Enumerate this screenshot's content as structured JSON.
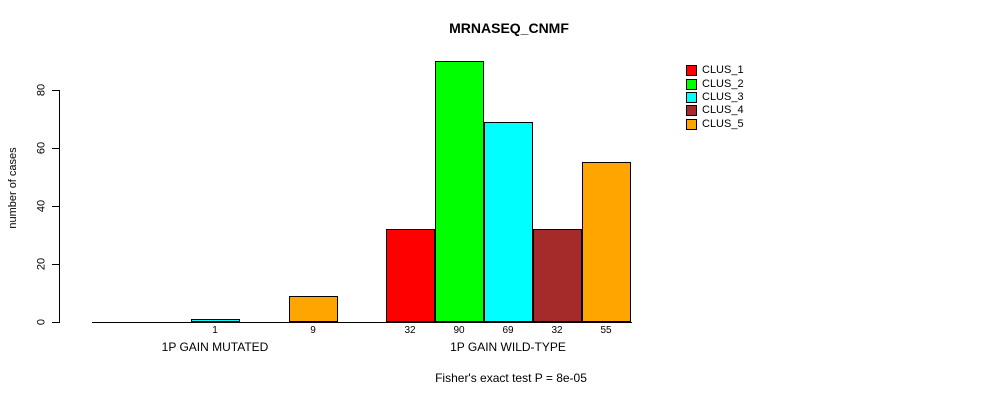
{
  "chart_data": {
    "type": "bar",
    "title": "MRNASEQ_CNMF",
    "ylabel": "number of cases",
    "xlabel": "",
    "subtitle": "Fisher's exact test P = 8e-05",
    "groups": [
      "1P GAIN MUTATED",
      "1P GAIN WILD-TYPE"
    ],
    "yticks": [
      0,
      20,
      40,
      60,
      80
    ],
    "ylim": [
      0,
      93
    ],
    "grid": false,
    "legend_position": "top-right",
    "bar_value_labels": "shown under each non-zero bar",
    "series": [
      {
        "name": "CLUS_1",
        "color": "#ff0000",
        "values": [
          0,
          32
        ]
      },
      {
        "name": "CLUS_2",
        "color": "#00ff00",
        "values": [
          0,
          90
        ]
      },
      {
        "name": "CLUS_3",
        "color": "#00ffff",
        "values": [
          1,
          69
        ]
      },
      {
        "name": "CLUS_4",
        "color": "#a52a2a",
        "values": [
          0,
          32
        ]
      },
      {
        "name": "CLUS_5",
        "color": "#ffa500",
        "values": [
          9,
          55
        ]
      }
    ]
  },
  "colors": {
    "background": "#ffffff",
    "axis": "#000000",
    "text": "#000000"
  }
}
